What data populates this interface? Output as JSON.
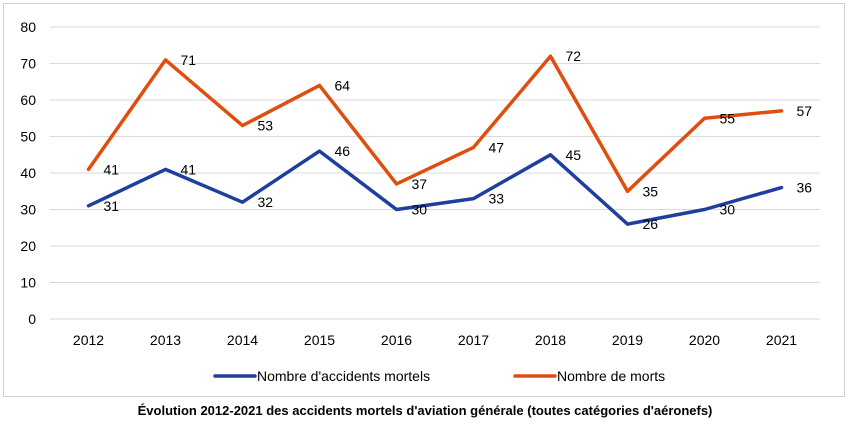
{
  "chart_data": {
    "type": "line",
    "categories": [
      "2012",
      "2013",
      "2014",
      "2015",
      "2016",
      "2017",
      "2018",
      "2019",
      "2020",
      "2021"
    ],
    "series": [
      {
        "name": "Nombre d'accidents mortels",
        "color": "#1f3f9e",
        "values": [
          31,
          41,
          32,
          46,
          30,
          33,
          45,
          26,
          30,
          36
        ]
      },
      {
        "name": "Nombre de morts",
        "color": "#e04e0f",
        "values": [
          41,
          71,
          53,
          64,
          37,
          47,
          72,
          35,
          55,
          57
        ]
      }
    ],
    "ylim": [
      0,
      80
    ],
    "yticks": [
      0,
      10,
      20,
      30,
      40,
      50,
      60,
      70,
      80
    ],
    "grid": true,
    "legend": "bottom",
    "title": "",
    "xlabel": "",
    "ylabel": ""
  },
  "caption": "Évolution 2012-2021 des accidents mortels d'aviation générale (toutes catégories d'aéronefs)"
}
